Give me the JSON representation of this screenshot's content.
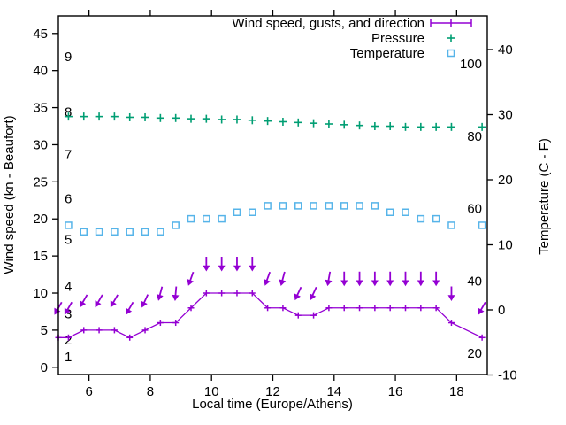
{
  "chart_data": {
    "type": "line",
    "title": "",
    "xlabel": "Local time (Europe/Athens)",
    "ylabel_left": "Wind speed (kn - Beaufort)",
    "ylabel_right": "Temperature (C - F)",
    "x_range": [
      5,
      19
    ],
    "x_ticks": [
      6,
      8,
      10,
      12,
      14,
      16,
      18
    ],
    "y_left_ticks": [
      0,
      5,
      10,
      15,
      20,
      25,
      30,
      35,
      40,
      45
    ],
    "y_right_ticks": [
      -10,
      0,
      10,
      20,
      30,
      40
    ],
    "grid": false,
    "legend_position": "top-right-inside",
    "colors": {
      "wind": "#9400d3",
      "pressure": "#009e73",
      "temperature": "#56b4e9",
      "axis": "#000000",
      "background": "#ffffff"
    },
    "legend": [
      {
        "label": "Wind speed, gusts, and direction",
        "color": "#9400d3",
        "style": "errorbar"
      },
      {
        "label": "Pressure",
        "color": "#009e73",
        "style": "plus"
      },
      {
        "label": "Temperature",
        "color": "#56b4e9",
        "style": "square"
      }
    ],
    "beaufort_inner_labels": [
      {
        "text": "1",
        "kn": 1.4
      },
      {
        "text": "2",
        "kn": 3.7
      },
      {
        "text": "3",
        "kn": 7.2
      },
      {
        "text": "4",
        "kn": 10.9
      },
      {
        "text": "5",
        "kn": 17.2
      },
      {
        "text": "6",
        "kn": 22.7
      },
      {
        "text": "7",
        "kn": 28.7
      },
      {
        "text": "8",
        "kn": 34.4
      },
      {
        "text": "9",
        "kn": 41.9
      }
    ],
    "fahrenheit_inner_labels": [
      {
        "text": "20",
        "c": -6.7
      },
      {
        "text": "40",
        "c": 4.4
      },
      {
        "text": "60",
        "c": 15.6
      },
      {
        "text": "80",
        "c": 26.7
      },
      {
        "text": "100",
        "c": 37.8
      }
    ],
    "series": {
      "wind_speed": {
        "name": "Wind speed",
        "axis": "left",
        "unit": "kn",
        "color": "#9400d3",
        "marker": "plus",
        "line": true,
        "x": [
          5.0,
          5.33,
          5.83,
          6.33,
          6.83,
          7.33,
          7.83,
          8.33,
          8.83,
          9.33,
          9.83,
          10.33,
          10.83,
          11.33,
          11.83,
          12.33,
          12.83,
          13.33,
          13.83,
          14.33,
          14.83,
          15.33,
          15.83,
          16.33,
          16.83,
          17.33,
          17.83,
          18.83
        ],
        "y": [
          4,
          4,
          5,
          5,
          5,
          4,
          5,
          6,
          6,
          8,
          10,
          10,
          10,
          10,
          8,
          8,
          7,
          7,
          8,
          8,
          8,
          8,
          8,
          8,
          8,
          8,
          6,
          4
        ]
      },
      "gusts": {
        "name": "Gusts and direction",
        "axis": "left",
        "unit": "kn",
        "color": "#9400d3",
        "marker": "arrow-down",
        "line": false,
        "x": [
          5.0,
          5.33,
          5.83,
          6.33,
          6.83,
          7.33,
          7.83,
          8.33,
          8.83,
          9.33,
          9.83,
          10.33,
          10.83,
          11.33,
          11.83,
          12.33,
          12.83,
          13.33,
          13.83,
          14.33,
          14.83,
          15.33,
          15.83,
          16.33,
          16.83,
          17.33,
          17.83,
          18.83
        ],
        "y": [
          8,
          8,
          9,
          9,
          9,
          8,
          9,
          10,
          10,
          12,
          14,
          14,
          14,
          14,
          12,
          12,
          10,
          10,
          12,
          12,
          12,
          12,
          12,
          12,
          12,
          12,
          10,
          8
        ],
        "tilt_deg": [
          30,
          30,
          30,
          30,
          30,
          30,
          25,
          15,
          5,
          20,
          0,
          0,
          0,
          0,
          20,
          15,
          25,
          25,
          10,
          0,
          0,
          0,
          0,
          0,
          0,
          0,
          0,
          30
        ]
      },
      "pressure": {
        "name": "Pressure",
        "axis": "left",
        "unit": "left-axis units as plotted",
        "color": "#009e73",
        "marker": "plus",
        "line": false,
        "x": [
          5.33,
          5.83,
          6.33,
          6.83,
          7.33,
          7.83,
          8.33,
          8.83,
          9.33,
          9.83,
          10.33,
          10.83,
          11.33,
          11.83,
          12.33,
          12.83,
          13.33,
          13.83,
          14.33,
          14.83,
          15.33,
          15.83,
          16.33,
          16.83,
          17.33,
          17.83,
          18.83
        ],
        "y": [
          33.8,
          33.8,
          33.8,
          33.8,
          33.7,
          33.7,
          33.6,
          33.6,
          33.5,
          33.5,
          33.4,
          33.4,
          33.3,
          33.2,
          33.1,
          33.0,
          32.9,
          32.8,
          32.7,
          32.6,
          32.5,
          32.5,
          32.4,
          32.4,
          32.4,
          32.4,
          32.4
        ]
      },
      "temperature": {
        "name": "Temperature",
        "axis": "right",
        "unit": "C",
        "color": "#56b4e9",
        "marker": "square",
        "line": false,
        "x": [
          5.33,
          5.83,
          6.33,
          6.83,
          7.33,
          7.83,
          8.33,
          8.83,
          9.33,
          9.83,
          10.33,
          10.83,
          11.33,
          11.83,
          12.33,
          12.83,
          13.33,
          13.83,
          14.33,
          14.83,
          15.33,
          15.83,
          16.33,
          16.83,
          17.33,
          17.83,
          18.83
        ],
        "y": [
          13,
          12,
          12,
          12,
          12,
          12,
          12,
          13,
          14,
          14,
          14,
          15,
          15,
          16,
          16,
          16,
          16,
          16,
          16,
          16,
          16,
          15,
          15,
          14,
          14,
          13,
          13
        ]
      }
    }
  }
}
